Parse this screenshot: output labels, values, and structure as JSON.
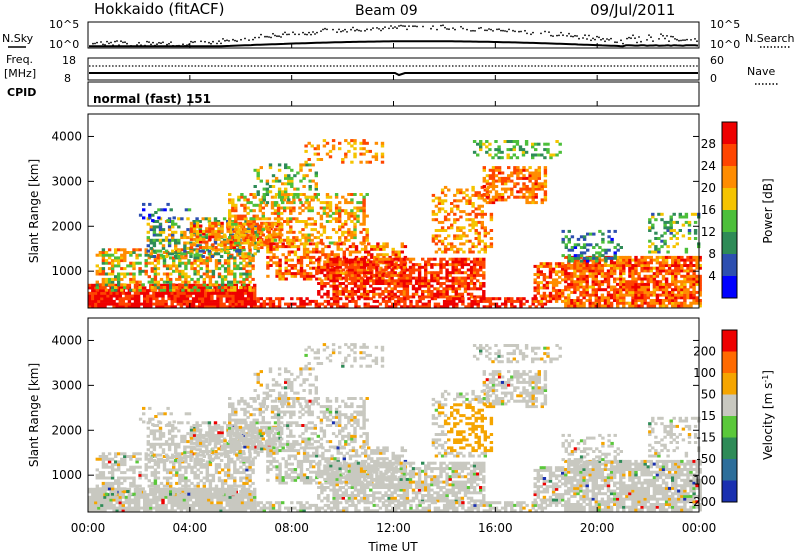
{
  "header": {
    "title": "Hokkaido (fitACF)",
    "beam": "Beam 09",
    "date": "09/Jul/2011"
  },
  "top_strip": {
    "nsky_label": "N.Sky",
    "nsearch_label": "N.Search",
    "nsearch_scale": [
      "10^5",
      "10^0"
    ],
    "nsky_scale": [
      "10^5",
      "10^0"
    ],
    "freq_label_line1": "Freq.",
    "freq_label_line2": "[MHz]",
    "freq_ticks": [
      "18",
      "8"
    ],
    "nave_label": "Nave",
    "nave_ticks": [
      "60",
      "0"
    ],
    "cpid_label": "CPID",
    "cpid_value": "normal (fast) 151"
  },
  "chart_data": [
    {
      "type": "heatmap",
      "title": "",
      "xlabel": "",
      "ylabel": "Slant Range [km]",
      "x_ticks": [
        "00:00",
        "04:00",
        "08:00",
        "12:00",
        "16:00",
        "20:00",
        "00:00"
      ],
      "xlim_hours": [
        0,
        24
      ],
      "ylim_km": [
        180,
        4500
      ],
      "y_ticks": [
        1000,
        2000,
        3000,
        4000
      ],
      "colorbar": {
        "label": "Power [dB]",
        "ticks": [
          "4",
          "8",
          "12",
          "16",
          "20",
          "24",
          "28"
        ],
        "colors": [
          "#0000ff",
          "#2d4fb0",
          "#2e8b57",
          "#4cbf3a",
          "#f5c400",
          "#ff8c00",
          "#ff4500",
          "#ee0000"
        ]
      }
    },
    {
      "type": "heatmap",
      "title": "",
      "xlabel": "Time UT",
      "ylabel": "Slant Range [km]",
      "x_ticks": [
        "00:00",
        "04:00",
        "08:00",
        "12:00",
        "16:00",
        "20:00",
        "00:00"
      ],
      "xlim_hours": [
        0,
        24
      ],
      "ylim_km": [
        180,
        4500
      ],
      "y_ticks": [
        1000,
        2000,
        3000,
        4000
      ],
      "colorbar": {
        "label": "Velocity [m s^-1]",
        "ticks": [
          "200",
          "100",
          "50",
          "15",
          "-15",
          "-50",
          "-100",
          "-200"
        ],
        "colors": [
          "#1a30b0",
          "#2d6e9a",
          "#2e8b57",
          "#5ac83a",
          "#c8c8c0",
          "#f5a500",
          "#ff6a00",
          "#ee0000"
        ]
      }
    }
  ]
}
